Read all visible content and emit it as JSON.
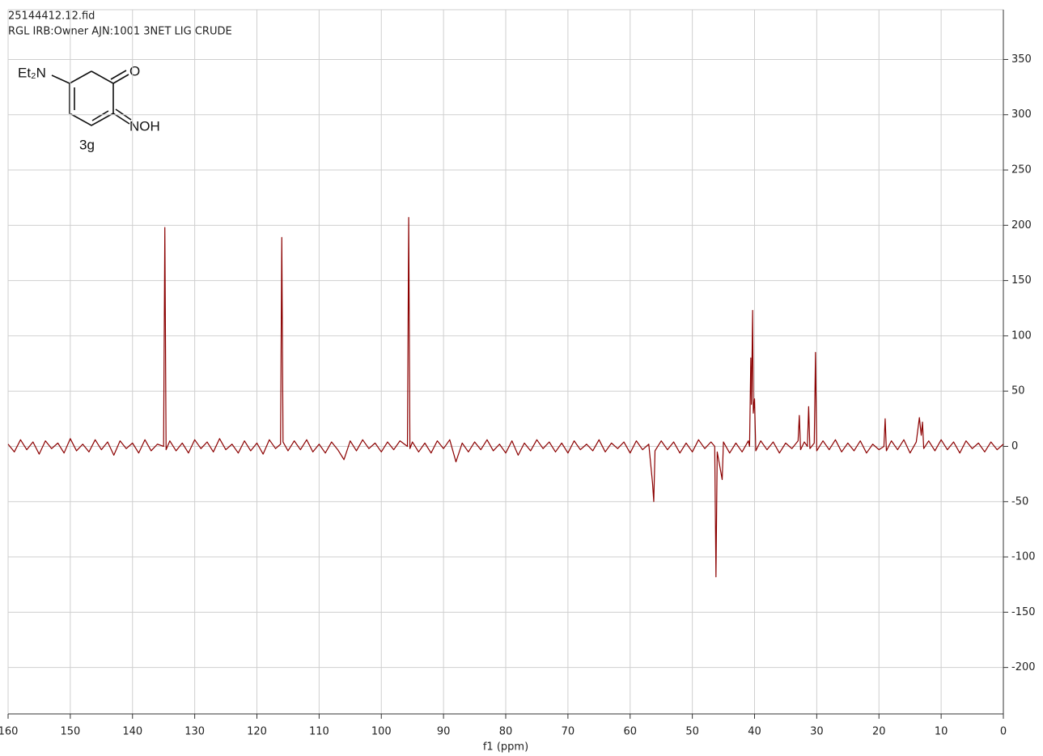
{
  "chart_data": {
    "type": "line",
    "title": "25144412.12.fid",
    "subtitle": "RGL IRB:Owner AJN:1001 3NET LIG CRUDE",
    "x_label": "f1 (ppm)",
    "structure": {
      "amine": "Et₂N",
      "ketone": "O",
      "oxime": "NOH",
      "compound": "3g"
    },
    "color": "#8b0000",
    "reverse_x": true,
    "grid": true,
    "xlim": [
      160,
      0
    ],
    "ylim": [
      -242,
      395
    ],
    "xticks": [
      160,
      150,
      140,
      130,
      120,
      110,
      100,
      90,
      80,
      70,
      60,
      50,
      40,
      30,
      20,
      10,
      0
    ],
    "yticks": [
      -200,
      -150,
      -100,
      -50,
      0,
      50,
      100,
      150,
      200,
      250,
      300,
      350
    ],
    "x": [
      160,
      159,
      158,
      157,
      156,
      155,
      154,
      153,
      152,
      151,
      150,
      149,
      148,
      147,
      146,
      145,
      144,
      143,
      142,
      141,
      140,
      139,
      138,
      137,
      136,
      135,
      134.8,
      134.6,
      134,
      133,
      132,
      131,
      130,
      129,
      128,
      127,
      126,
      125,
      124,
      123,
      122,
      121,
      120,
      119,
      118,
      117,
      116.2,
      116,
      115.8,
      115,
      114,
      113,
      112,
      111,
      110,
      109,
      108,
      107,
      106,
      105,
      104,
      103,
      102,
      101,
      100,
      99,
      98,
      97,
      95.8,
      95.6,
      95.4,
      95,
      94,
      93,
      92,
      91,
      90,
      89,
      88,
      87,
      86,
      85,
      84,
      83,
      82,
      81,
      80,
      79,
      78,
      77,
      76,
      75,
      74,
      73,
      72,
      71,
      70,
      69,
      68,
      67,
      66,
      65,
      64,
      63,
      62,
      61,
      60,
      59,
      58,
      57,
      56.4,
      56.2,
      56.0,
      55,
      54,
      53,
      52,
      51,
      50,
      49,
      48,
      47,
      46.4,
      46.2,
      46.0,
      45.2,
      45,
      44,
      43,
      42,
      41,
      40.8,
      40.6,
      40.5,
      40.3,
      40.2,
      40.0,
      39.8,
      39,
      38,
      37,
      36,
      35,
      34,
      33,
      32.8,
      32.6,
      32,
      31.5,
      31.3,
      31.1,
      30.4,
      30.2,
      30.0,
      29,
      28,
      27,
      26,
      25,
      24,
      23,
      22,
      21,
      20,
      19.2,
      19.0,
      18.8,
      18,
      17,
      16,
      15,
      14,
      13.5,
      13.2,
      13.0,
      12.8,
      12,
      11,
      10,
      9,
      8,
      7,
      6,
      5,
      4,
      3,
      2,
      1,
      0
    ],
    "values": [
      2,
      -5,
      6,
      -3,
      4,
      -7,
      5,
      -2,
      3,
      -6,
      7,
      -4,
      2,
      -5,
      6,
      -3,
      4,
      -8,
      5,
      -2,
      3,
      -6,
      6,
      -4,
      2,
      0,
      198,
      -3,
      5,
      -4,
      3,
      -6,
      6,
      -2,
      4,
      -5,
      7,
      -3,
      2,
      -6,
      5,
      -4,
      3,
      -7,
      6,
      -2,
      2,
      189,
      4,
      -4,
      5,
      -3,
      6,
      -5,
      2,
      -6,
      4,
      -3,
      -12,
      5,
      -4,
      6,
      -2,
      3,
      -5,
      4,
      -3,
      5,
      0,
      207,
      -2,
      4,
      -5,
      3,
      -6,
      5,
      -2,
      6,
      -14,
      3,
      -5,
      4,
      -3,
      6,
      -4,
      2,
      -6,
      5,
      -8,
      3,
      -4,
      6,
      -2,
      4,
      -5,
      3,
      -6,
      5,
      -3,
      2,
      -4,
      6,
      -5,
      3,
      -2,
      4,
      -6,
      5,
      -3,
      2,
      -33,
      -50,
      -4,
      5,
      -3,
      4,
      -6,
      3,
      -5,
      6,
      -2,
      4,
      0,
      -118,
      -5,
      -30,
      4,
      -6,
      3,
      -5,
      5,
      0,
      80,
      38,
      123,
      30,
      43,
      -4,
      5,
      -3,
      4,
      -6,
      3,
      -2,
      5,
      28,
      -3,
      4,
      0,
      36,
      -2,
      3,
      85,
      -4,
      5,
      -3,
      6,
      -5,
      3,
      -4,
      5,
      -6,
      2,
      -3,
      0,
      25,
      -4,
      5,
      -3,
      6,
      -6,
      4,
      26,
      10,
      22,
      -2,
      5,
      -4,
      6,
      -3,
      4,
      -6,
      5,
      -2,
      3,
      -5,
      4,
      -3,
      2
    ]
  }
}
